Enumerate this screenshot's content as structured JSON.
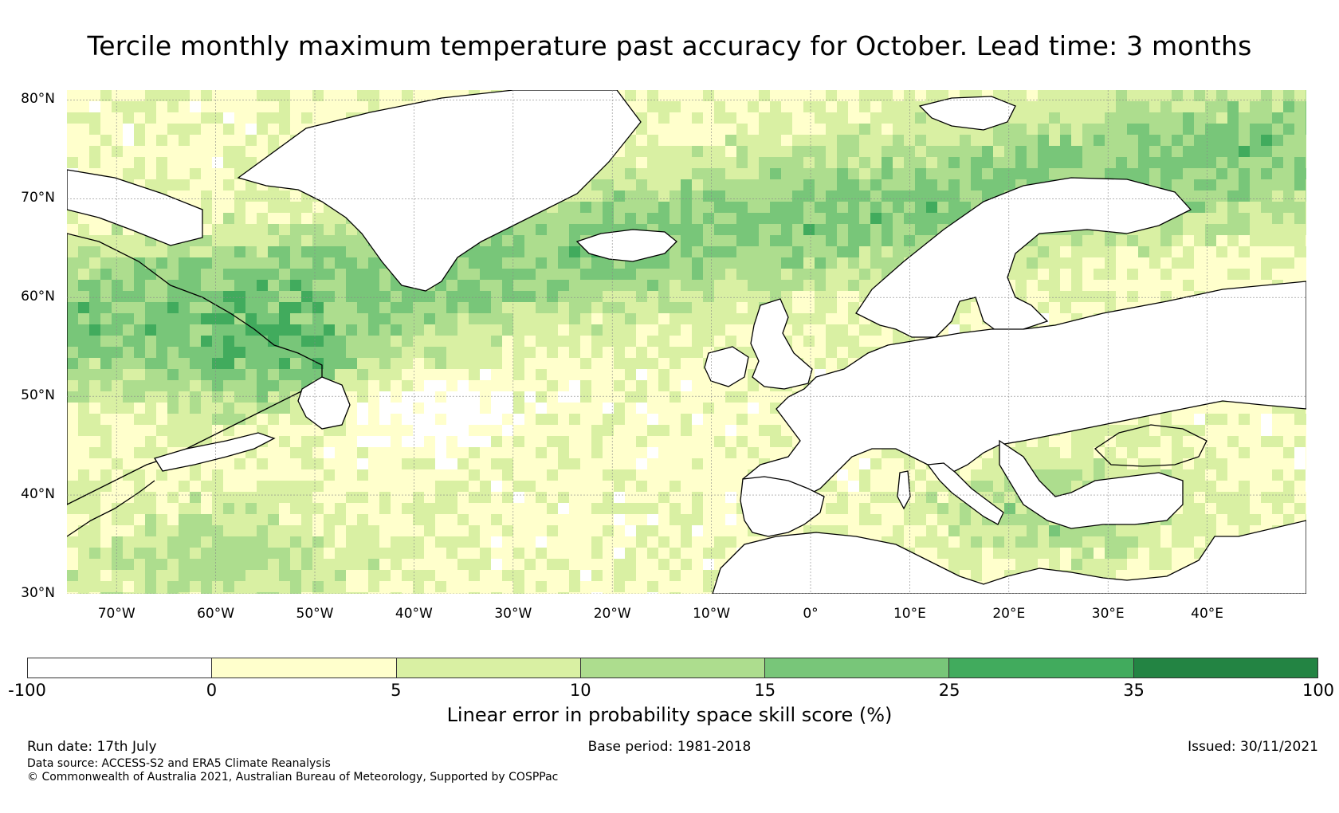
{
  "title": "Tercile monthly maximum temperature past accuracy for October. Lead time: 3 months",
  "map": {
    "lat_labels": [
      "80°N",
      "70°N",
      "60°N",
      "50°N",
      "40°N",
      "30°N"
    ],
    "lat_values": [
      80,
      70,
      60,
      50,
      40,
      30
    ],
    "lon_labels": [
      "70°W",
      "60°W",
      "50°W",
      "40°W",
      "30°W",
      "20°W",
      "10°W",
      "0°",
      "10°E",
      "20°E",
      "30°E",
      "40°E"
    ],
    "lon_values": [
      -70,
      -60,
      -50,
      -40,
      -30,
      -20,
      -10,
      0,
      10,
      20,
      30,
      40
    ],
    "lon_range": [
      -75,
      50
    ],
    "lat_range": [
      30,
      81
    ],
    "gridlines": true,
    "land_fill": "#ffffff",
    "coastline_color": "#000000"
  },
  "colorbar": {
    "label": "Linear error in probability space skill score (%)",
    "ticks": [
      "-100",
      "0",
      "5",
      "10",
      "15",
      "25",
      "35",
      "100"
    ],
    "colors": [
      "#ffffff",
      "#ffffcc",
      "#d9f0a3",
      "#addd8e",
      "#78c679",
      "#41ab5d",
      "#238443"
    ]
  },
  "footer": {
    "run_date": "Run date: 17th July",
    "base_period": "Base period: 1981-2018",
    "issued": "Issued: 30/11/2021",
    "data_source": "Data source: ACCESS-S2 and ERA5 Climate Reanalysis",
    "copyright": "© Commonwealth of Australia 2021, Australian Bureau of Meteorology, Supported by COSPPac"
  }
}
